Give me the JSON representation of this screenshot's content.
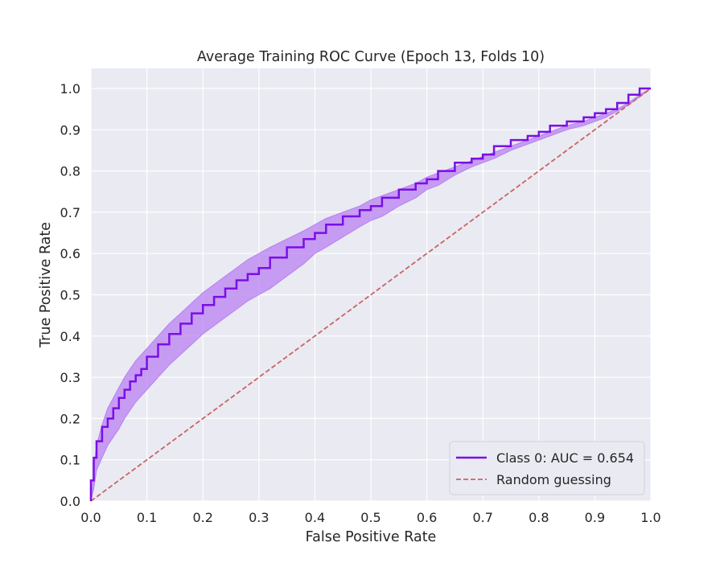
{
  "chart_data": {
    "type": "line",
    "title": "Average Training ROC Curve (Epoch 13, Folds 10)",
    "xlabel": "False Positive Rate",
    "ylabel": "True Positive Rate",
    "xlim": [
      0.0,
      1.0
    ],
    "ylim": [
      0.0,
      1.0
    ],
    "xticks": [
      "0.0",
      "0.1",
      "0.2",
      "0.3",
      "0.4",
      "0.5",
      "0.6",
      "0.7",
      "0.8",
      "0.9",
      "1.0"
    ],
    "yticks": [
      "0.0",
      "0.1",
      "0.2",
      "0.3",
      "0.4",
      "0.5",
      "0.6",
      "0.7",
      "0.8",
      "0.9",
      "1.0"
    ],
    "grid": true,
    "legend_position": "lower-right",
    "colors": {
      "background": "#eaeaf2",
      "grid": "#ffffff",
      "roc_line": "#7a0fe6",
      "band_fill": "#b980f2",
      "random_line": "#c86464"
    },
    "series": [
      {
        "name": "Class 0: AUC = 0.654",
        "style": "solid",
        "x": [
          0.0,
          0.005,
          0.01,
          0.02,
          0.03,
          0.04,
          0.05,
          0.06,
          0.07,
          0.08,
          0.09,
          0.1,
          0.12,
          0.14,
          0.16,
          0.18,
          0.2,
          0.22,
          0.24,
          0.26,
          0.28,
          0.3,
          0.32,
          0.35,
          0.38,
          0.4,
          0.42,
          0.45,
          0.48,
          0.5,
          0.52,
          0.55,
          0.58,
          0.6,
          0.62,
          0.65,
          0.68,
          0.7,
          0.72,
          0.75,
          0.78,
          0.8,
          0.82,
          0.85,
          0.88,
          0.9,
          0.92,
          0.94,
          0.96,
          0.98,
          1.0
        ],
        "y": [
          0.0,
          0.05,
          0.105,
          0.145,
          0.18,
          0.2,
          0.225,
          0.25,
          0.27,
          0.29,
          0.305,
          0.32,
          0.35,
          0.38,
          0.405,
          0.43,
          0.455,
          0.475,
          0.495,
          0.515,
          0.535,
          0.55,
          0.565,
          0.59,
          0.615,
          0.635,
          0.65,
          0.67,
          0.69,
          0.705,
          0.715,
          0.735,
          0.755,
          0.77,
          0.78,
          0.8,
          0.82,
          0.83,
          0.84,
          0.86,
          0.875,
          0.885,
          0.895,
          0.91,
          0.92,
          0.93,
          0.94,
          0.95,
          0.965,
          0.985,
          1.0
        ],
        "band_upper": [
          0.0,
          0.07,
          0.135,
          0.185,
          0.225,
          0.25,
          0.275,
          0.3,
          0.32,
          0.34,
          0.355,
          0.37,
          0.4,
          0.43,
          0.455,
          0.48,
          0.505,
          0.525,
          0.545,
          0.565,
          0.585,
          0.6,
          0.615,
          0.635,
          0.655,
          0.67,
          0.685,
          0.7,
          0.715,
          0.73,
          0.74,
          0.755,
          0.77,
          0.785,
          0.795,
          0.81,
          0.825,
          0.835,
          0.845,
          0.86,
          0.875,
          0.885,
          0.895,
          0.91,
          0.92,
          0.93,
          0.94,
          0.95,
          0.965,
          0.985,
          1.0
        ],
        "band_lower": [
          0.0,
          0.03,
          0.075,
          0.105,
          0.135,
          0.155,
          0.175,
          0.2,
          0.22,
          0.24,
          0.255,
          0.27,
          0.3,
          0.33,
          0.355,
          0.38,
          0.405,
          0.425,
          0.445,
          0.465,
          0.485,
          0.5,
          0.515,
          0.545,
          0.575,
          0.6,
          0.615,
          0.64,
          0.665,
          0.68,
          0.69,
          0.715,
          0.735,
          0.755,
          0.765,
          0.79,
          0.81,
          0.82,
          0.83,
          0.85,
          0.865,
          0.875,
          0.885,
          0.9,
          0.91,
          0.92,
          0.93,
          0.945,
          0.96,
          0.98,
          1.0
        ]
      },
      {
        "name": "Random guessing",
        "style": "dashed",
        "x": [
          0.0,
          1.0
        ],
        "y": [
          0.0,
          1.0
        ]
      }
    ]
  }
}
